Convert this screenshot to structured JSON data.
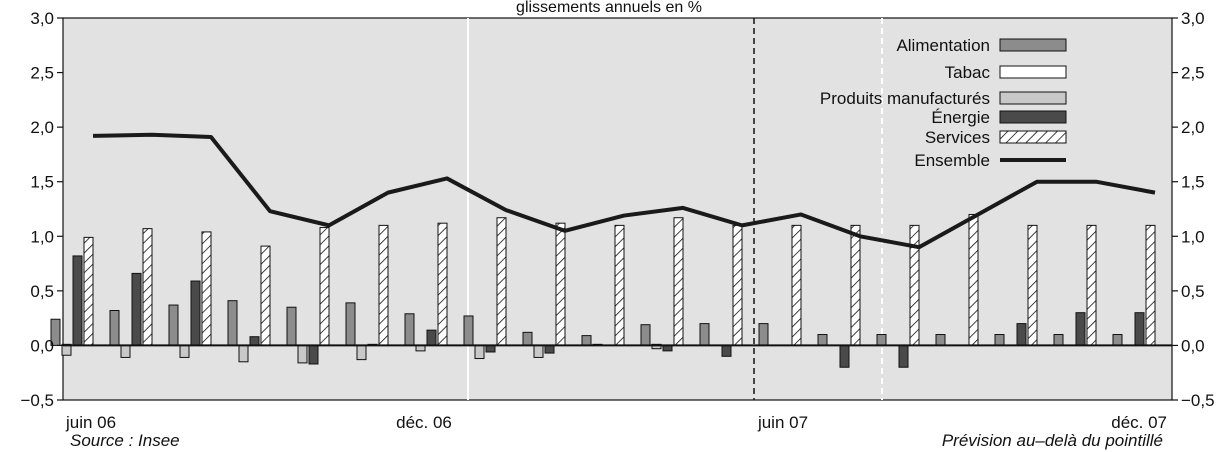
{
  "chart_data": {
    "type": "bar",
    "title": "glissements annuels en %",
    "source": "Source : Insee",
    "forecast_note": "Prévision au–delà du pointillé",
    "ylim": [
      -0.5,
      3.0
    ],
    "yticks": [
      "−0,5",
      "0,0",
      "0,5",
      "1,0",
      "1,5",
      "2,0",
      "2,5",
      "3,0"
    ],
    "ytick_values": [
      -0.5,
      0,
      0.5,
      1.0,
      1.5,
      2.0,
      2.5,
      3.0
    ],
    "x_labels": [
      {
        "index": 0,
        "text": "juin 06"
      },
      {
        "index": 6,
        "text": "déc. 06"
      },
      {
        "index": 12,
        "text": "juin 07"
      },
      {
        "index": 18,
        "text": "déc. 07"
      }
    ],
    "n_periods": 19,
    "grid": "vertical separators",
    "legend_position": "top-right",
    "series": [
      {
        "name": "Alimentation",
        "kind": "bar",
        "color": "#8c8c8c",
        "values": [
          0.24,
          0.32,
          0.37,
          0.41,
          0.35,
          0.39,
          0.29,
          0.27,
          0.12,
          0.09,
          0.19,
          0.2,
          0.2,
          0.1,
          0.1,
          0.1,
          0.1,
          0.1,
          0.1
        ]
      },
      {
        "name": "Tabac",
        "kind": "bar",
        "color": "#ffffff",
        "values": [
          0.01,
          0.0,
          0.0,
          0.0,
          0.0,
          0.0,
          0.0,
          0.0,
          0.0,
          0.01,
          0.01,
          0.0,
          0.0,
          0.0,
          0.0,
          0.0,
          0.0,
          0.0,
          0.0
        ]
      },
      {
        "name": "Produits manufacturés",
        "kind": "bar",
        "color": "#c8c8c8",
        "values": [
          -0.09,
          -0.11,
          -0.11,
          -0.15,
          -0.16,
          -0.13,
          -0.05,
          -0.12,
          -0.11,
          0.0,
          -0.03,
          0.0,
          0.0,
          0.0,
          0.0,
          0.0,
          0.0,
          0.0,
          0.0
        ]
      },
      {
        "name": "Énergie",
        "kind": "bar",
        "color": "#4a4a4a",
        "values": [
          0.82,
          0.66,
          0.59,
          0.08,
          -0.17,
          0.01,
          0.14,
          -0.06,
          -0.07,
          0.0,
          -0.05,
          -0.1,
          0.0,
          -0.2,
          -0.2,
          0.0,
          0.2,
          0.3,
          0.3
        ]
      },
      {
        "name": "Services",
        "kind": "bar",
        "color": "#ffffff",
        "pattern": "hatch",
        "values": [
          0.99,
          1.07,
          1.04,
          0.91,
          1.08,
          1.1,
          1.12,
          1.17,
          1.12,
          1.1,
          1.17,
          1.1,
          1.1,
          1.1,
          1.1,
          1.2,
          1.1,
          1.1,
          1.1
        ]
      },
      {
        "name": "Ensemble",
        "kind": "line",
        "color": "#1a1a1a",
        "values": [
          1.92,
          1.93,
          1.91,
          1.23,
          1.1,
          1.4,
          1.53,
          1.24,
          1.05,
          1.19,
          1.26,
          1.1,
          1.2,
          1.0,
          0.9,
          1.2,
          1.5,
          1.5,
          1.4
        ]
      }
    ]
  }
}
